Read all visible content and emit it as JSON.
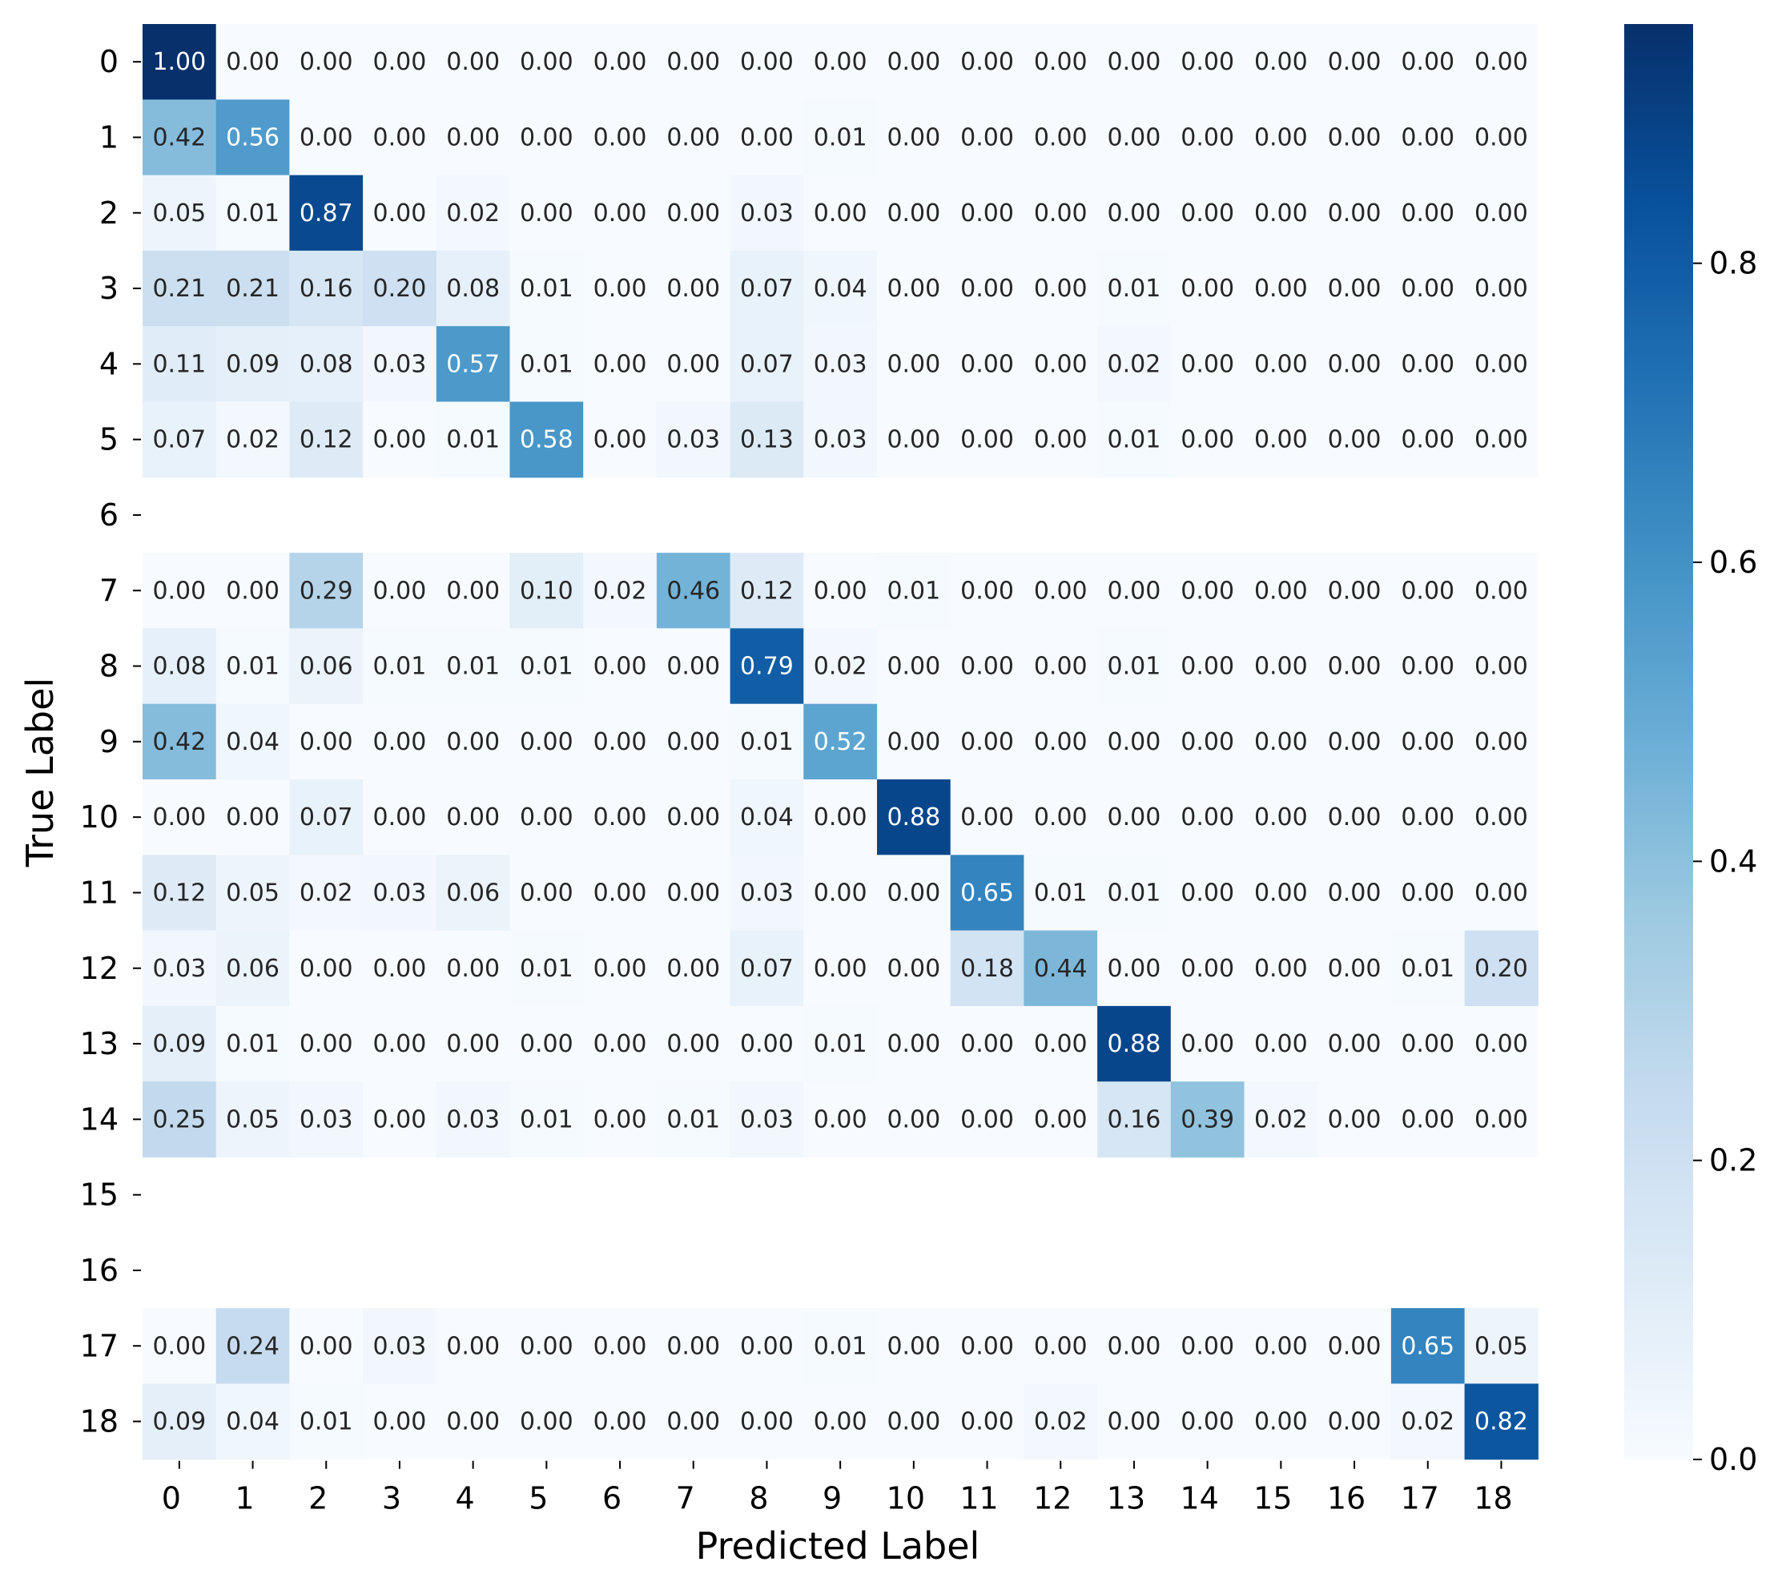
{
  "chart_data": {
    "type": "heatmap",
    "title": "",
    "xlabel": "Predicted Label",
    "ylabel": "True Label",
    "x_categories": [
      "0",
      "1",
      "2",
      "3",
      "4",
      "5",
      "6",
      "7",
      "8",
      "9",
      "10",
      "11",
      "12",
      "13",
      "14",
      "15",
      "16",
      "17",
      "18"
    ],
    "y_categories": [
      "0",
      "1",
      "2",
      "3",
      "4",
      "5",
      "6",
      "7",
      "8",
      "9",
      "10",
      "11",
      "12",
      "13",
      "14",
      "15",
      "16",
      "17",
      "18"
    ],
    "values": [
      [
        1.0,
        0.0,
        0.0,
        0.0,
        0.0,
        0.0,
        0.0,
        0.0,
        0.0,
        0.0,
        0.0,
        0.0,
        0.0,
        0.0,
        0.0,
        0.0,
        0.0,
        0.0,
        0.0
      ],
      [
        0.42,
        0.56,
        0.0,
        0.0,
        0.0,
        0.0,
        0.0,
        0.0,
        0.0,
        0.01,
        0.0,
        0.0,
        0.0,
        0.0,
        0.0,
        0.0,
        0.0,
        0.0,
        0.0
      ],
      [
        0.05,
        0.01,
        0.87,
        0.0,
        0.02,
        0.0,
        0.0,
        0.0,
        0.03,
        0.0,
        0.0,
        0.0,
        0.0,
        0.0,
        0.0,
        0.0,
        0.0,
        0.0,
        0.0
      ],
      [
        0.21,
        0.21,
        0.16,
        0.2,
        0.08,
        0.01,
        0.0,
        0.0,
        0.07,
        0.04,
        0.0,
        0.0,
        0.0,
        0.01,
        0.0,
        0.0,
        0.0,
        0.0,
        0.0
      ],
      [
        0.11,
        0.09,
        0.08,
        0.03,
        0.57,
        0.01,
        0.0,
        0.0,
        0.07,
        0.03,
        0.0,
        0.0,
        0.0,
        0.02,
        0.0,
        0.0,
        0.0,
        0.0,
        0.0
      ],
      [
        0.07,
        0.02,
        0.12,
        0.0,
        0.01,
        0.58,
        0.0,
        0.03,
        0.13,
        0.03,
        0.0,
        0.0,
        0.0,
        0.01,
        0.0,
        0.0,
        0.0,
        0.0,
        0.0
      ],
      null,
      [
        0.0,
        0.0,
        0.29,
        0.0,
        0.0,
        0.1,
        0.02,
        0.46,
        0.12,
        0.0,
        0.01,
        0.0,
        0.0,
        0.0,
        0.0,
        0.0,
        0.0,
        0.0,
        0.0
      ],
      [
        0.08,
        0.01,
        0.06,
        0.01,
        0.01,
        0.01,
        0.0,
        0.0,
        0.79,
        0.02,
        0.0,
        0.0,
        0.0,
        0.01,
        0.0,
        0.0,
        0.0,
        0.0,
        0.0
      ],
      [
        0.42,
        0.04,
        0.0,
        0.0,
        0.0,
        0.0,
        0.0,
        0.0,
        0.01,
        0.52,
        0.0,
        0.0,
        0.0,
        0.0,
        0.0,
        0.0,
        0.0,
        0.0,
        0.0
      ],
      [
        0.0,
        0.0,
        0.07,
        0.0,
        0.0,
        0.0,
        0.0,
        0.0,
        0.04,
        0.0,
        0.88,
        0.0,
        0.0,
        0.0,
        0.0,
        0.0,
        0.0,
        0.0,
        0.0
      ],
      [
        0.12,
        0.05,
        0.02,
        0.03,
        0.06,
        0.0,
        0.0,
        0.0,
        0.03,
        0.0,
        0.0,
        0.65,
        0.01,
        0.01,
        0.0,
        0.0,
        0.0,
        0.0,
        0.0
      ],
      [
        0.03,
        0.06,
        0.0,
        0.0,
        0.0,
        0.01,
        0.0,
        0.0,
        0.07,
        0.0,
        0.0,
        0.18,
        0.44,
        0.0,
        0.0,
        0.0,
        0.0,
        0.01,
        0.2
      ],
      [
        0.09,
        0.01,
        0.0,
        0.0,
        0.0,
        0.0,
        0.0,
        0.0,
        0.0,
        0.01,
        0.0,
        0.0,
        0.0,
        0.88,
        0.0,
        0.0,
        0.0,
        0.0,
        0.0
      ],
      [
        0.25,
        0.05,
        0.03,
        0.0,
        0.03,
        0.01,
        0.0,
        0.01,
        0.03,
        0.0,
        0.0,
        0.0,
        0.0,
        0.16,
        0.39,
        0.02,
        0.0,
        0.0,
        0.0
      ],
      null,
      null,
      [
        0.0,
        0.24,
        0.0,
        0.03,
        0.0,
        0.0,
        0.0,
        0.0,
        0.0,
        0.01,
        0.0,
        0.0,
        0.0,
        0.0,
        0.0,
        0.0,
        0.0,
        0.65,
        0.05
      ],
      [
        0.09,
        0.04,
        0.01,
        0.0,
        0.0,
        0.0,
        0.0,
        0.0,
        0.0,
        0.0,
        0.0,
        0.0,
        0.02,
        0.0,
        0.0,
        0.0,
        0.0,
        0.02,
        0.82
      ]
    ],
    "value_format": "0.00",
    "colormap": "Blues",
    "colorbar": {
      "min": 0.0,
      "max": 0.96,
      "ticks": [
        0.0,
        0.2,
        0.4,
        0.6,
        0.8
      ],
      "tick_labels": [
        "0.0",
        "0.2",
        "0.4",
        "0.6",
        "0.8"
      ]
    },
    "colors": {
      "low": "#f7fbff",
      "high": "#08306b",
      "text_dark": "#262626",
      "text_light": "#ffffff"
    },
    "grid": false,
    "legend": "colorbar-right"
  }
}
